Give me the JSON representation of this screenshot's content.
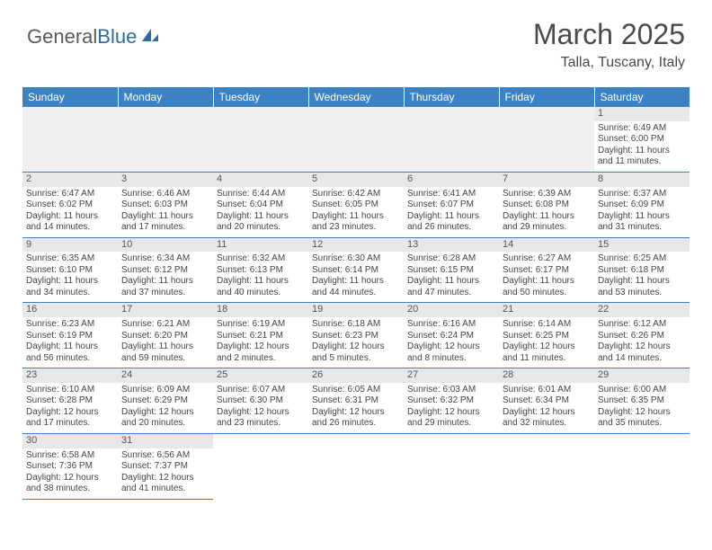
{
  "logo": {
    "text1": "General",
    "text2": "Blue"
  },
  "title": "March 2025",
  "location": "Talla, Tuscany, Italy",
  "colors": {
    "header_bg": "#3b82c4",
    "header_text": "#ffffff",
    "daynum_bg": "#e8e8e8",
    "border": "#3b82c4",
    "text": "#444444",
    "logo_gray": "#5a5a5a",
    "logo_blue": "#2d6ca2"
  },
  "days": [
    "Sunday",
    "Monday",
    "Tuesday",
    "Wednesday",
    "Thursday",
    "Friday",
    "Saturday"
  ],
  "cells": [
    {
      "n": "",
      "sr": "",
      "ss": "",
      "d1": "",
      "d2": ""
    },
    {
      "n": "",
      "sr": "",
      "ss": "",
      "d1": "",
      "d2": ""
    },
    {
      "n": "",
      "sr": "",
      "ss": "",
      "d1": "",
      "d2": ""
    },
    {
      "n": "",
      "sr": "",
      "ss": "",
      "d1": "",
      "d2": ""
    },
    {
      "n": "",
      "sr": "",
      "ss": "",
      "d1": "",
      "d2": ""
    },
    {
      "n": "",
      "sr": "",
      "ss": "",
      "d1": "",
      "d2": ""
    },
    {
      "n": "1",
      "sr": "Sunrise: 6:49 AM",
      "ss": "Sunset: 6:00 PM",
      "d1": "Daylight: 11 hours",
      "d2": "and 11 minutes."
    },
    {
      "n": "2",
      "sr": "Sunrise: 6:47 AM",
      "ss": "Sunset: 6:02 PM",
      "d1": "Daylight: 11 hours",
      "d2": "and 14 minutes."
    },
    {
      "n": "3",
      "sr": "Sunrise: 6:46 AM",
      "ss": "Sunset: 6:03 PM",
      "d1": "Daylight: 11 hours",
      "d2": "and 17 minutes."
    },
    {
      "n": "4",
      "sr": "Sunrise: 6:44 AM",
      "ss": "Sunset: 6:04 PM",
      "d1": "Daylight: 11 hours",
      "d2": "and 20 minutes."
    },
    {
      "n": "5",
      "sr": "Sunrise: 6:42 AM",
      "ss": "Sunset: 6:05 PM",
      "d1": "Daylight: 11 hours",
      "d2": "and 23 minutes."
    },
    {
      "n": "6",
      "sr": "Sunrise: 6:41 AM",
      "ss": "Sunset: 6:07 PM",
      "d1": "Daylight: 11 hours",
      "d2": "and 26 minutes."
    },
    {
      "n": "7",
      "sr": "Sunrise: 6:39 AM",
      "ss": "Sunset: 6:08 PM",
      "d1": "Daylight: 11 hours",
      "d2": "and 29 minutes."
    },
    {
      "n": "8",
      "sr": "Sunrise: 6:37 AM",
      "ss": "Sunset: 6:09 PM",
      "d1": "Daylight: 11 hours",
      "d2": "and 31 minutes."
    },
    {
      "n": "9",
      "sr": "Sunrise: 6:35 AM",
      "ss": "Sunset: 6:10 PM",
      "d1": "Daylight: 11 hours",
      "d2": "and 34 minutes."
    },
    {
      "n": "10",
      "sr": "Sunrise: 6:34 AM",
      "ss": "Sunset: 6:12 PM",
      "d1": "Daylight: 11 hours",
      "d2": "and 37 minutes."
    },
    {
      "n": "11",
      "sr": "Sunrise: 6:32 AM",
      "ss": "Sunset: 6:13 PM",
      "d1": "Daylight: 11 hours",
      "d2": "and 40 minutes."
    },
    {
      "n": "12",
      "sr": "Sunrise: 6:30 AM",
      "ss": "Sunset: 6:14 PM",
      "d1": "Daylight: 11 hours",
      "d2": "and 44 minutes."
    },
    {
      "n": "13",
      "sr": "Sunrise: 6:28 AM",
      "ss": "Sunset: 6:15 PM",
      "d1": "Daylight: 11 hours",
      "d2": "and 47 minutes."
    },
    {
      "n": "14",
      "sr": "Sunrise: 6:27 AM",
      "ss": "Sunset: 6:17 PM",
      "d1": "Daylight: 11 hours",
      "d2": "and 50 minutes."
    },
    {
      "n": "15",
      "sr": "Sunrise: 6:25 AM",
      "ss": "Sunset: 6:18 PM",
      "d1": "Daylight: 11 hours",
      "d2": "and 53 minutes."
    },
    {
      "n": "16",
      "sr": "Sunrise: 6:23 AM",
      "ss": "Sunset: 6:19 PM",
      "d1": "Daylight: 11 hours",
      "d2": "and 56 minutes."
    },
    {
      "n": "17",
      "sr": "Sunrise: 6:21 AM",
      "ss": "Sunset: 6:20 PM",
      "d1": "Daylight: 11 hours",
      "d2": "and 59 minutes."
    },
    {
      "n": "18",
      "sr": "Sunrise: 6:19 AM",
      "ss": "Sunset: 6:21 PM",
      "d1": "Daylight: 12 hours",
      "d2": "and 2 minutes."
    },
    {
      "n": "19",
      "sr": "Sunrise: 6:18 AM",
      "ss": "Sunset: 6:23 PM",
      "d1": "Daylight: 12 hours",
      "d2": "and 5 minutes."
    },
    {
      "n": "20",
      "sr": "Sunrise: 6:16 AM",
      "ss": "Sunset: 6:24 PM",
      "d1": "Daylight: 12 hours",
      "d2": "and 8 minutes."
    },
    {
      "n": "21",
      "sr": "Sunrise: 6:14 AM",
      "ss": "Sunset: 6:25 PM",
      "d1": "Daylight: 12 hours",
      "d2": "and 11 minutes."
    },
    {
      "n": "22",
      "sr": "Sunrise: 6:12 AM",
      "ss": "Sunset: 6:26 PM",
      "d1": "Daylight: 12 hours",
      "d2": "and 14 minutes."
    },
    {
      "n": "23",
      "sr": "Sunrise: 6:10 AM",
      "ss": "Sunset: 6:28 PM",
      "d1": "Daylight: 12 hours",
      "d2": "and 17 minutes."
    },
    {
      "n": "24",
      "sr": "Sunrise: 6:09 AM",
      "ss": "Sunset: 6:29 PM",
      "d1": "Daylight: 12 hours",
      "d2": "and 20 minutes."
    },
    {
      "n": "25",
      "sr": "Sunrise: 6:07 AM",
      "ss": "Sunset: 6:30 PM",
      "d1": "Daylight: 12 hours",
      "d2": "and 23 minutes."
    },
    {
      "n": "26",
      "sr": "Sunrise: 6:05 AM",
      "ss": "Sunset: 6:31 PM",
      "d1": "Daylight: 12 hours",
      "d2": "and 26 minutes."
    },
    {
      "n": "27",
      "sr": "Sunrise: 6:03 AM",
      "ss": "Sunset: 6:32 PM",
      "d1": "Daylight: 12 hours",
      "d2": "and 29 minutes."
    },
    {
      "n": "28",
      "sr": "Sunrise: 6:01 AM",
      "ss": "Sunset: 6:34 PM",
      "d1": "Daylight: 12 hours",
      "d2": "and 32 minutes."
    },
    {
      "n": "29",
      "sr": "Sunrise: 6:00 AM",
      "ss": "Sunset: 6:35 PM",
      "d1": "Daylight: 12 hours",
      "d2": "and 35 minutes."
    },
    {
      "n": "30",
      "sr": "Sunrise: 6:58 AM",
      "ss": "Sunset: 7:36 PM",
      "d1": "Daylight: 12 hours",
      "d2": "and 38 minutes."
    },
    {
      "n": "31",
      "sr": "Sunrise: 6:56 AM",
      "ss": "Sunset: 7:37 PM",
      "d1": "Daylight: 12 hours",
      "d2": "and 41 minutes."
    },
    {
      "n": "",
      "sr": "",
      "ss": "",
      "d1": "",
      "d2": ""
    },
    {
      "n": "",
      "sr": "",
      "ss": "",
      "d1": "",
      "d2": ""
    },
    {
      "n": "",
      "sr": "",
      "ss": "",
      "d1": "",
      "d2": ""
    },
    {
      "n": "",
      "sr": "",
      "ss": "",
      "d1": "",
      "d2": ""
    },
    {
      "n": "",
      "sr": "",
      "ss": "",
      "d1": "",
      "d2": ""
    }
  ]
}
